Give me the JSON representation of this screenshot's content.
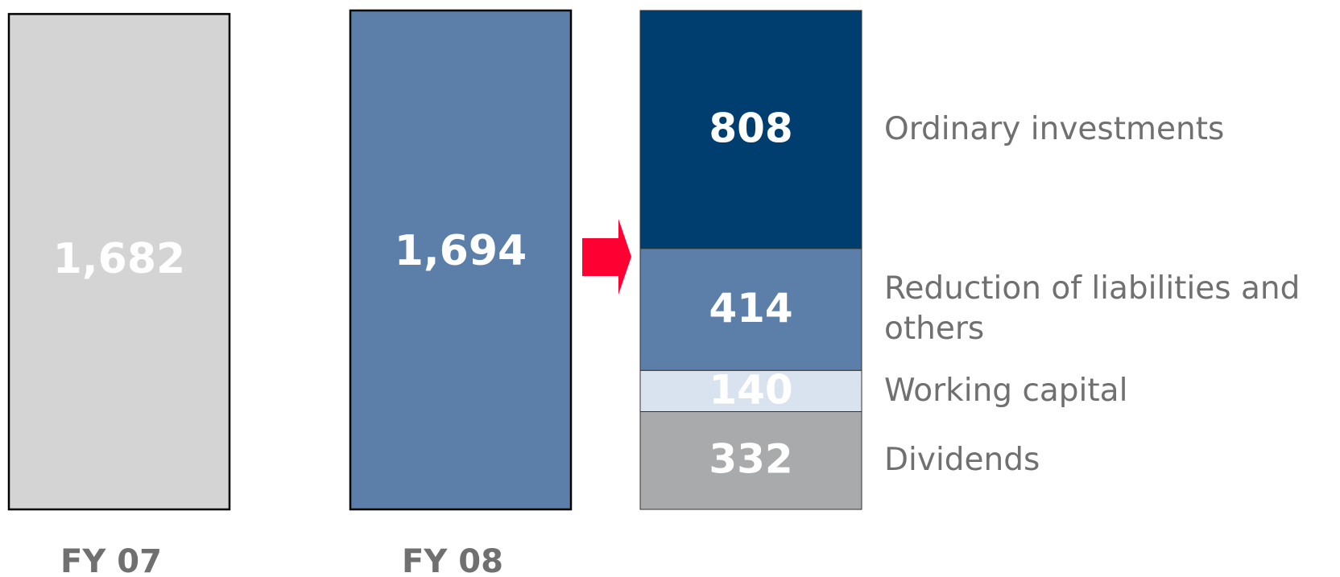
{
  "chart_data": {
    "type": "bar",
    "categories": [
      "FY 07",
      "FY 08"
    ],
    "values": [
      1682,
      1694
    ],
    "value_labels": [
      "1,682",
      "1,694"
    ],
    "colors": [
      "#d4d4d4",
      "#5b7fa9"
    ],
    "breakdown": {
      "type": "stacked_bar",
      "series": [
        {
          "name": "Dividends",
          "color": "#a9aaac",
          "values": [
            332
          ],
          "value_labels": [
            "332"
          ]
        },
        {
          "name": "Working capital",
          "color": "#d9e3ef",
          "values": [
            140
          ],
          "value_labels": [
            "140"
          ]
        },
        {
          "name": "Reduction of liabilities and others",
          "color": "#5b7fa9",
          "values": [
            414
          ],
          "value_labels": [
            "414"
          ]
        },
        {
          "name": "Ordinary investments",
          "color": "#003e6f",
          "values": [
            808
          ],
          "value_labels": [
            "808"
          ]
        }
      ]
    }
  }
}
